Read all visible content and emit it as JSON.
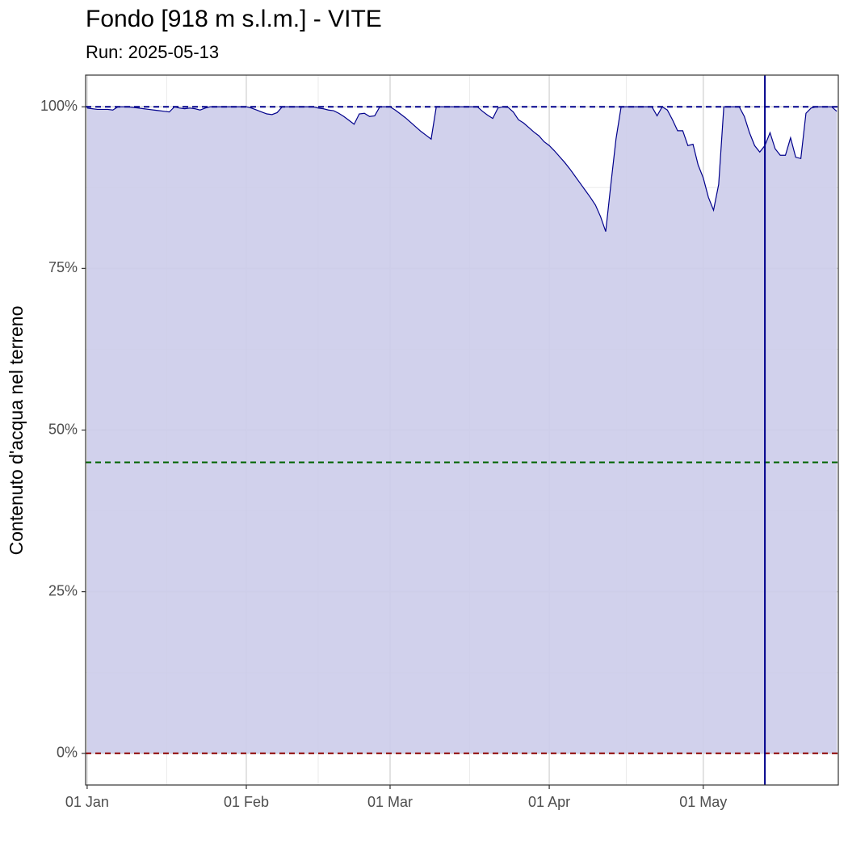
{
  "chart_data": {
    "type": "area",
    "title": "Fondo [918 m s.l.m.] - VITE",
    "subtitle": "Run: 2025-05-13",
    "y_label": "Contenuto d'acqua nel terreno",
    "x": [
      1,
      2,
      3,
      4,
      5,
      6,
      7,
      8,
      9,
      10,
      11,
      12,
      13,
      14,
      15,
      16,
      17,
      18,
      19,
      20,
      21,
      22,
      23,
      24,
      25,
      26,
      27,
      28,
      29,
      30,
      31,
      32,
      33,
      34,
      35,
      36,
      37,
      38,
      39,
      40,
      41,
      42,
      43,
      44,
      45,
      46,
      47,
      48,
      49,
      50,
      51,
      52,
      53,
      54,
      55,
      56,
      57,
      58,
      59,
      60,
      61,
      62,
      63,
      64,
      65,
      66,
      67,
      68,
      69,
      70,
      71,
      72,
      73,
      74,
      75,
      76,
      77,
      78,
      79,
      80,
      81,
      82,
      83,
      84,
      85,
      86,
      87,
      88,
      89,
      90,
      91,
      92,
      93,
      94,
      95,
      96,
      97,
      98,
      99,
      100,
      101,
      102,
      103,
      104,
      105,
      106,
      107,
      108,
      109,
      110,
      111,
      112,
      113,
      114,
      115,
      116,
      117,
      118,
      119,
      120,
      121,
      122,
      123,
      124,
      125,
      126,
      127,
      128,
      129,
      130,
      131,
      132,
      133,
      134,
      135,
      136,
      137,
      138,
      139,
      140,
      141,
      142,
      143,
      144,
      145,
      146,
      147
    ],
    "series": [
      {
        "color": "#00008b",
        "fill": "#ccccea",
        "values": [
          99.8,
          99.7,
          99.6,
          99.6,
          99.6,
          99.5,
          100,
          100,
          100,
          99.9,
          99.8,
          99.7,
          99.6,
          99.5,
          99.4,
          99.3,
          99.2,
          100,
          99.8,
          99.7,
          99.8,
          99.7,
          99.5,
          99.8,
          100,
          100,
          100,
          100,
          100,
          100,
          100,
          100,
          99.8,
          99.5,
          99.2,
          98.9,
          98.8,
          99.1,
          100,
          100,
          100,
          100,
          100,
          100,
          100,
          99.8,
          99.7,
          99.5,
          99.4,
          99.0,
          98.5,
          97.9,
          97.3,
          98.9,
          99.0,
          98.5,
          98.6,
          100,
          100,
          100,
          99.5,
          98.9,
          98.3,
          97.6,
          96.9,
          96.2,
          95.6,
          95.0,
          100,
          100,
          100,
          100,
          100,
          100,
          100,
          100,
          100,
          99.3,
          98.7,
          98.2,
          99.8,
          100,
          99.9,
          99.2,
          98.0,
          97.5,
          96.8,
          96.1,
          95.5,
          94.6,
          94.0,
          93.2,
          92.3,
          91.4,
          90.4,
          89.3,
          88.2,
          87.1,
          86.0,
          84.8,
          83.0,
          80.7,
          88.0,
          95.0,
          100,
          100,
          100,
          100,
          100,
          100,
          100,
          98.6,
          100,
          99.5,
          98,
          96.3,
          96.3,
          94,
          94.2,
          91,
          89,
          86,
          84,
          88,
          100,
          100,
          100,
          100,
          98.5,
          96,
          94,
          93,
          94,
          96,
          93.5,
          92.5,
          92.5,
          95.2,
          92.2,
          92,
          99,
          99.8,
          100,
          100,
          100,
          100,
          99.3
        ]
      }
    ],
    "xlim": [
      0.7,
      147.3
    ],
    "xticks": [
      {
        "value": 1,
        "label": "01 Jan"
      },
      {
        "value": 32,
        "label": "01 Feb"
      },
      {
        "value": 60,
        "label": "01 Mar"
      },
      {
        "value": 91,
        "label": "01 Apr"
      },
      {
        "value": 121,
        "label": "01 May"
      }
    ],
    "ylim": [
      -4.9,
      104.9
    ],
    "yticks": [
      {
        "value": 0,
        "label": "0%"
      },
      {
        "value": 25,
        "label": "25%"
      },
      {
        "value": 50,
        "label": "50%"
      },
      {
        "value": 75,
        "label": "75%"
      },
      {
        "value": 100,
        "label": "100%"
      }
    ],
    "grid": true,
    "hlines": [
      {
        "value": 100,
        "color": "#00008b"
      },
      {
        "value": 45,
        "color": "#006400"
      },
      {
        "value": 0,
        "color": "#8b0000"
      }
    ],
    "vline": {
      "value": 133,
      "color": "#00008b"
    }
  }
}
